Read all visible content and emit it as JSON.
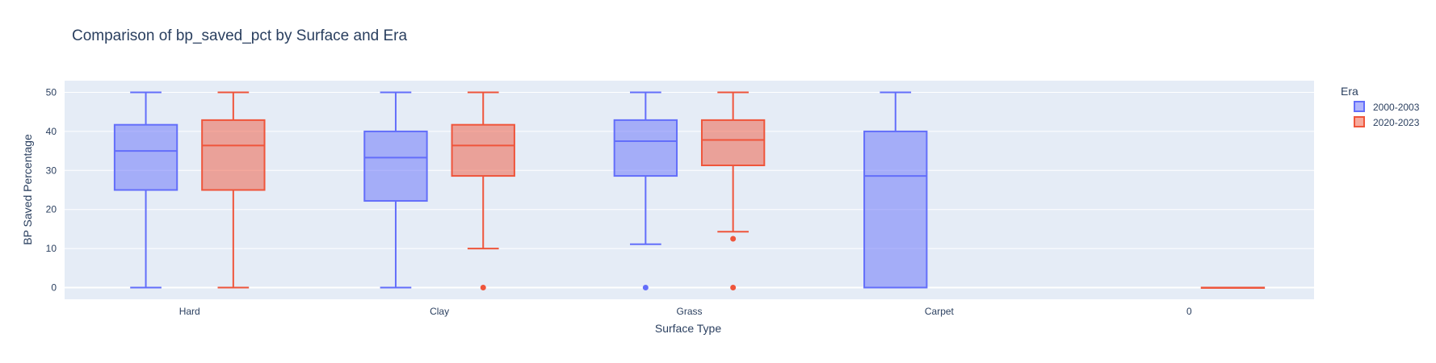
{
  "chart_data": {
    "type": "box",
    "title": "Comparison of bp_saved_pct by Surface and Era",
    "xlabel": "Surface Type",
    "ylabel": "BP Saved Percentage",
    "categories": [
      "Hard",
      "Clay",
      "Grass",
      "Carpet",
      "0"
    ],
    "y_ticks": [
      0,
      10,
      20,
      30,
      40,
      50
    ],
    "ylim": [
      -3,
      53
    ],
    "grid": true,
    "legend": {
      "title": "Era",
      "placement": "top-right"
    },
    "series": [
      {
        "name": "2000-2003",
        "color": "#636efa",
        "fill": "rgba(99,110,250,0.5)",
        "boxes": [
          {
            "category": "Hard",
            "min": 0,
            "q1": 25,
            "median": 35,
            "q3": 41.7,
            "max": 50,
            "outliers": []
          },
          {
            "category": "Clay",
            "min": 0,
            "q1": 22.2,
            "median": 33.3,
            "q3": 40,
            "max": 50,
            "outliers": []
          },
          {
            "category": "Grass",
            "min": 11.1,
            "q1": 28.6,
            "median": 37.5,
            "q3": 42.9,
            "max": 50,
            "outliers": [
              0
            ]
          },
          {
            "category": "Carpet",
            "min": 0,
            "q1": 0,
            "median": 28.6,
            "q3": 40,
            "max": 50,
            "outliers": []
          }
        ]
      },
      {
        "name": "2020-2023",
        "color": "#ef553b",
        "fill": "rgba(239,85,59,0.5)",
        "boxes": [
          {
            "category": "Hard",
            "min": 0,
            "q1": 25,
            "median": 36.4,
            "q3": 42.9,
            "max": 50,
            "outliers": []
          },
          {
            "category": "Clay",
            "min": 10,
            "q1": 28.6,
            "median": 36.4,
            "q3": 41.7,
            "max": 50,
            "outliers": [
              0
            ]
          },
          {
            "category": "Grass",
            "min": 14.3,
            "q1": 31.3,
            "median": 37.8,
            "q3": 42.9,
            "max": 50,
            "outliers": [
              12.5,
              0
            ]
          },
          {
            "category": "0",
            "min": 0,
            "q1": 0,
            "median": 0,
            "q3": 0,
            "max": 0,
            "outliers": []
          }
        ]
      }
    ]
  }
}
